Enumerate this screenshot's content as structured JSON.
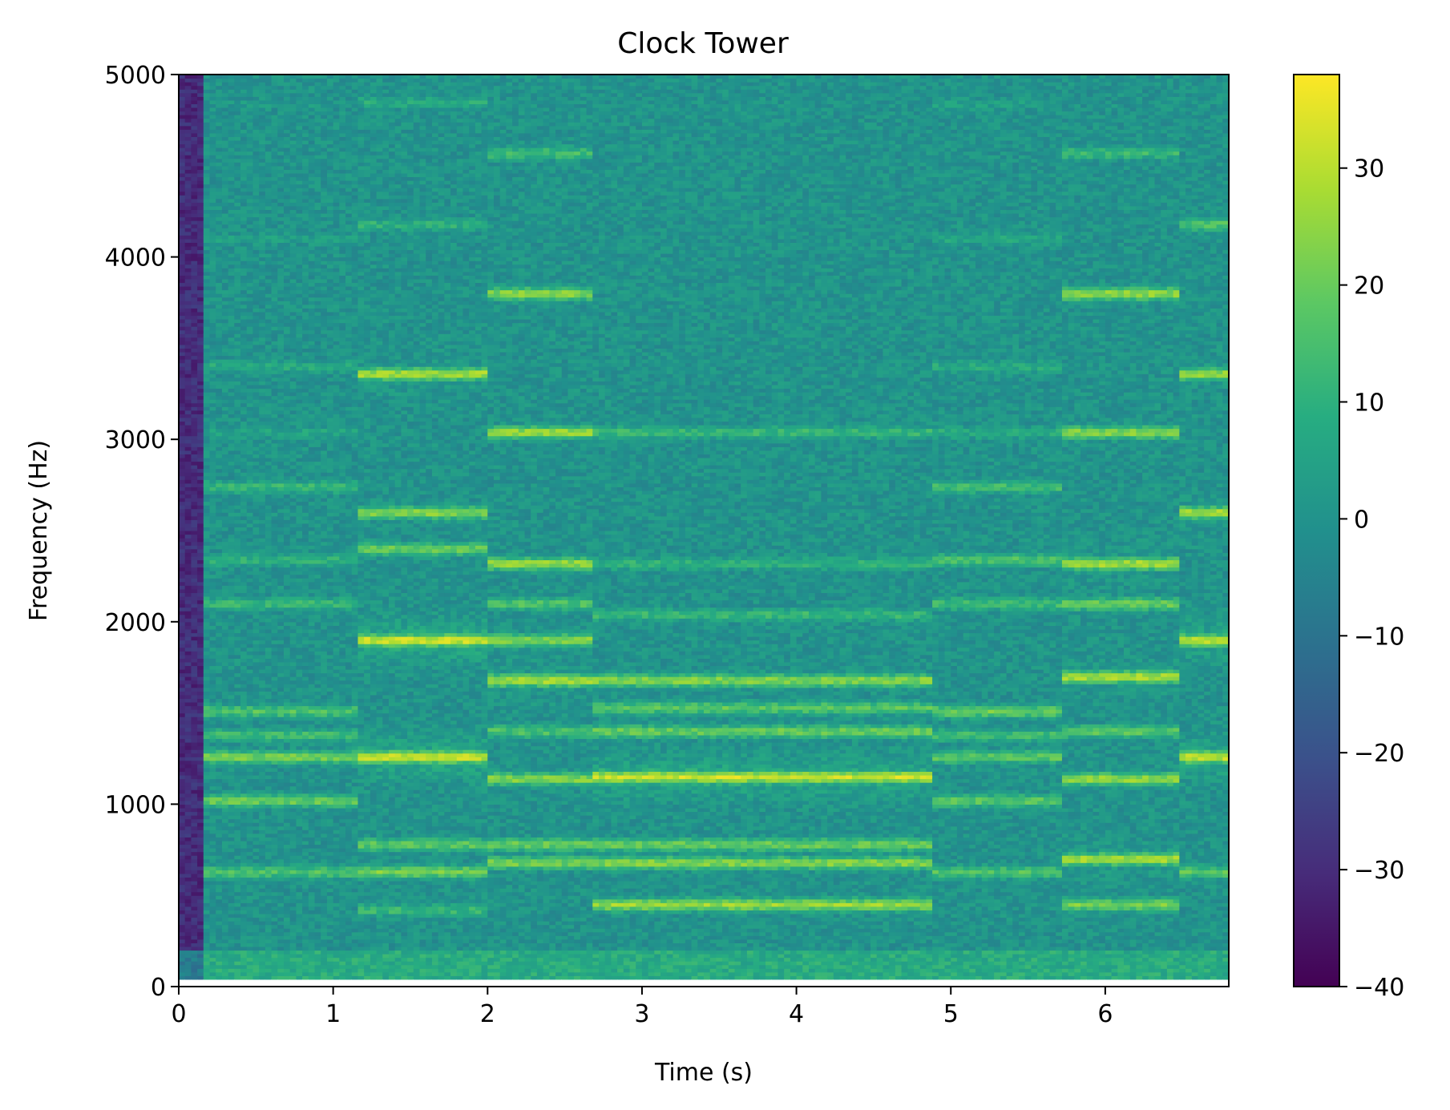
{
  "chart_data": {
    "type": "heatmap",
    "title": "Clock Tower",
    "xlabel": "Time (s)",
    "ylabel": "Frequency (Hz)",
    "xlim": [
      0,
      6.8
    ],
    "ylim": [
      0,
      5000
    ],
    "xticks": [
      0,
      1,
      2,
      3,
      4,
      5,
      6
    ],
    "yticks": [
      0,
      1000,
      2000,
      3000,
      4000,
      5000
    ],
    "colorbar": {
      "colormap": "viridis",
      "range": [
        -40,
        38
      ],
      "ticks": [
        -40,
        -30,
        -20,
        -10,
        0,
        10,
        20,
        30
      ],
      "tick_labels": [
        "−40",
        "−30",
        "−20",
        "−10",
        "0",
        "10",
        "20",
        "30"
      ]
    },
    "grid": false,
    "segments": [
      {
        "t0": 0.0,
        "t1": 0.15,
        "bands": []
      },
      {
        "t0": 0.15,
        "t1": 1.15,
        "bands": [
          {
            "f": 630,
            "db": 18
          },
          {
            "f": 1020,
            "db": 22
          },
          {
            "f": 1260,
            "db": 24
          },
          {
            "f": 1380,
            "db": 16
          },
          {
            "f": 1510,
            "db": 18
          },
          {
            "f": 2100,
            "db": 14
          },
          {
            "f": 2340,
            "db": 12
          },
          {
            "f": 2740,
            "db": 14
          },
          {
            "f": 3040,
            "db": 8
          },
          {
            "f": 3400,
            "db": 10
          },
          {
            "f": 4100,
            "db": 6
          },
          {
            "f": 4840,
            "db": 4
          }
        ]
      },
      {
        "t0": 1.15,
        "t1": 2.0,
        "bands": [
          {
            "f": 420,
            "db": 14
          },
          {
            "f": 630,
            "db": 24
          },
          {
            "f": 780,
            "db": 20
          },
          {
            "f": 1260,
            "db": 35
          },
          {
            "f": 1900,
            "db": 35
          },
          {
            "f": 2400,
            "db": 22
          },
          {
            "f": 2600,
            "db": 26
          },
          {
            "f": 3360,
            "db": 30
          },
          {
            "f": 4180,
            "db": 12
          },
          {
            "f": 4850,
            "db": 10
          }
        ]
      },
      {
        "t0": 2.0,
        "t1": 2.7,
        "bands": [
          {
            "f": 680,
            "db": 24
          },
          {
            "f": 780,
            "db": 22
          },
          {
            "f": 1140,
            "db": 26
          },
          {
            "f": 1400,
            "db": 18
          },
          {
            "f": 1680,
            "db": 30
          },
          {
            "f": 1900,
            "db": 26
          },
          {
            "f": 2100,
            "db": 18
          },
          {
            "f": 2320,
            "db": 28
          },
          {
            "f": 3040,
            "db": 28
          },
          {
            "f": 3800,
            "db": 26
          },
          {
            "f": 4570,
            "db": 16
          }
        ]
      },
      {
        "t0": 2.7,
        "t1": 4.9,
        "bands": [
          {
            "f": 450,
            "db": 28
          },
          {
            "f": 680,
            "db": 26
          },
          {
            "f": 780,
            "db": 22
          },
          {
            "f": 1150,
            "db": 34
          },
          {
            "f": 1400,
            "db": 22
          },
          {
            "f": 1530,
            "db": 20
          },
          {
            "f": 1680,
            "db": 26
          },
          {
            "f": 2040,
            "db": 14
          },
          {
            "f": 2320,
            "db": 12
          },
          {
            "f": 3040,
            "db": 14
          }
        ]
      },
      {
        "t0": 4.9,
        "t1": 5.72,
        "bands": [
          {
            "f": 630,
            "db": 18
          },
          {
            "f": 1020,
            "db": 20
          },
          {
            "f": 1260,
            "db": 20
          },
          {
            "f": 1380,
            "db": 16
          },
          {
            "f": 1510,
            "db": 22
          },
          {
            "f": 2100,
            "db": 16
          },
          {
            "f": 2340,
            "db": 18
          },
          {
            "f": 2740,
            "db": 16
          },
          {
            "f": 3040,
            "db": 10
          },
          {
            "f": 3400,
            "db": 10
          },
          {
            "f": 4100,
            "db": 8
          },
          {
            "f": 4840,
            "db": 6
          }
        ]
      },
      {
        "t0": 5.72,
        "t1": 6.48,
        "bands": [
          {
            "f": 450,
            "db": 24
          },
          {
            "f": 700,
            "db": 30
          },
          {
            "f": 1140,
            "db": 28
          },
          {
            "f": 1400,
            "db": 20
          },
          {
            "f": 1700,
            "db": 30
          },
          {
            "f": 2100,
            "db": 22
          },
          {
            "f": 2320,
            "db": 30
          },
          {
            "f": 3040,
            "db": 26
          },
          {
            "f": 3800,
            "db": 28
          },
          {
            "f": 4570,
            "db": 14
          }
        ]
      },
      {
        "t0": 6.48,
        "t1": 6.8,
        "bands": [
          {
            "f": 630,
            "db": 20
          },
          {
            "f": 1260,
            "db": 34
          },
          {
            "f": 1900,
            "db": 34
          },
          {
            "f": 2600,
            "db": 30
          },
          {
            "f": 3360,
            "db": 28
          },
          {
            "f": 4180,
            "db": 18
          }
        ]
      }
    ]
  }
}
